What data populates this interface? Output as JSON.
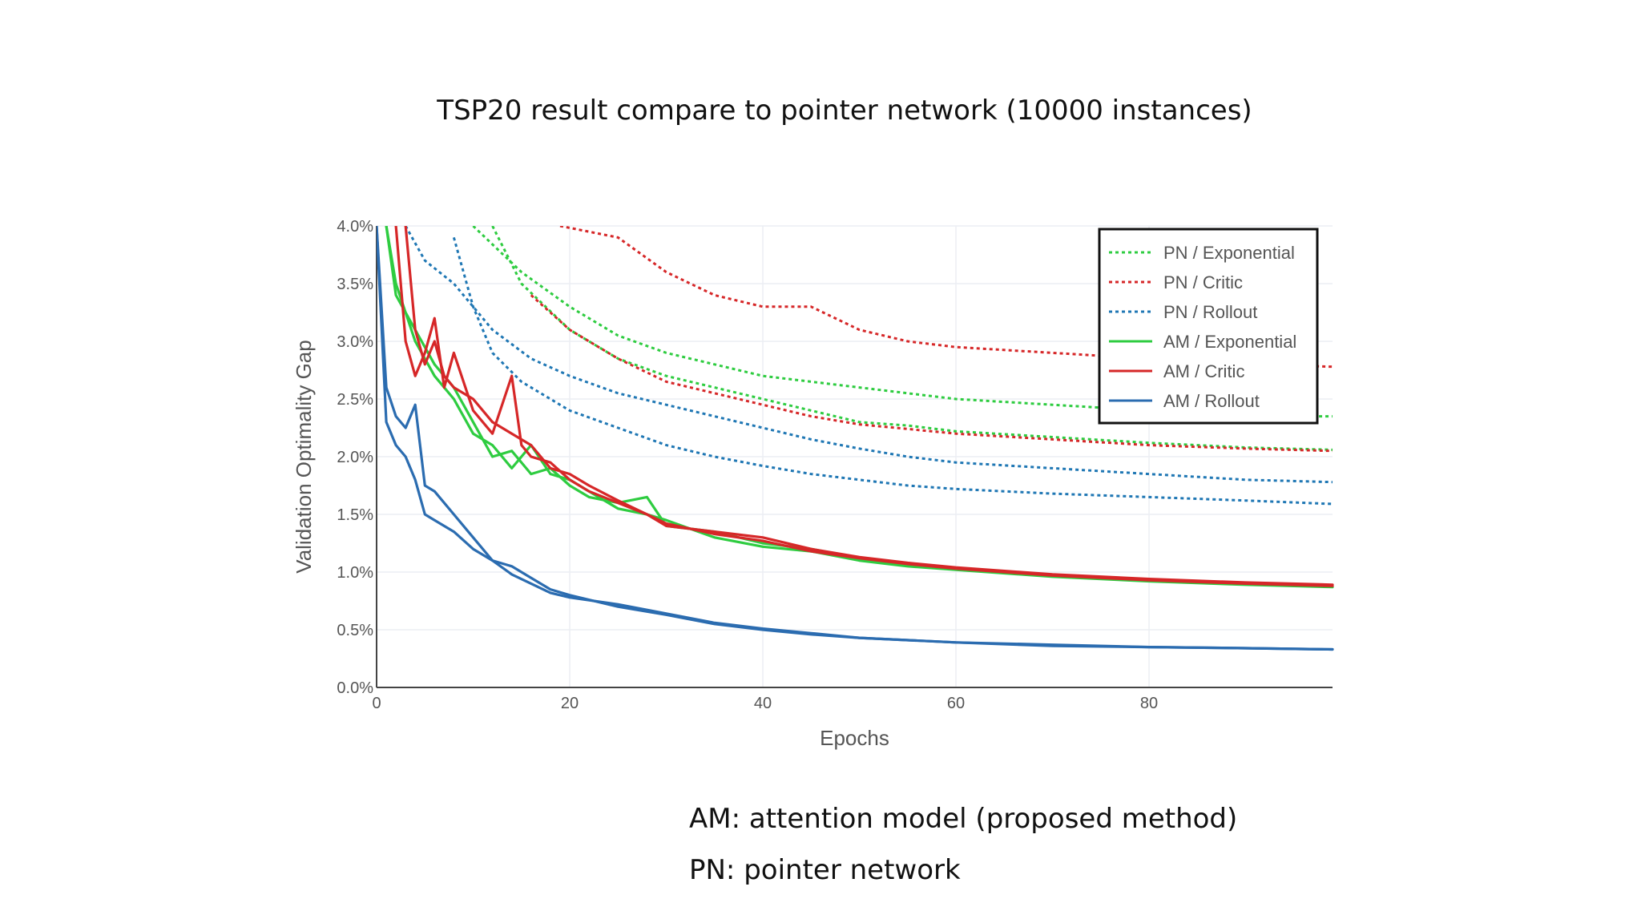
{
  "slide": {
    "title": "TSP20 result compare to pointer network (10000 instances)",
    "notes": [
      "AM: attention model (proposed method)",
      "PN: pointer network"
    ]
  },
  "chart_data": {
    "type": "line",
    "xlabel": "Epochs",
    "ylabel": "Validation Optimality Gap",
    "xlim": [
      0,
      99
    ],
    "ylim": [
      0,
      4.0
    ],
    "xticks": [
      0,
      20,
      40,
      60,
      80
    ],
    "xtick_labels": [
      "0",
      "20",
      "40",
      "60",
      "80"
    ],
    "yticks": [
      0,
      0.5,
      1.0,
      1.5,
      2.0,
      2.5,
      3.0,
      3.5,
      4.0
    ],
    "ytick_labels": [
      "0.0%",
      "0.5%",
      "1.0%",
      "1.5%",
      "2.0%",
      "2.5%",
      "3.0%",
      "3.5%",
      "4.0%"
    ],
    "grid": true,
    "legend_position": "top-right",
    "series": [
      {
        "name": "PN / Exponential",
        "color": "#2ecc40",
        "dash": "dotted",
        "runs": [
          [
            [
              10,
              4.0
            ],
            [
              15,
              3.6
            ],
            [
              20,
              3.3
            ],
            [
              25,
              3.05
            ],
            [
              30,
              2.9
            ],
            [
              35,
              2.8
            ],
            [
              40,
              2.7
            ],
            [
              45,
              2.65
            ],
            [
              50,
              2.6
            ],
            [
              55,
              2.55
            ],
            [
              60,
              2.5
            ],
            [
              70,
              2.45
            ],
            [
              80,
              2.4
            ],
            [
              90,
              2.35
            ],
            [
              99,
              2.35
            ]
          ],
          [
            [
              12,
              4.0
            ],
            [
              15,
              3.5
            ],
            [
              20,
              3.1
            ],
            [
              25,
              2.85
            ],
            [
              30,
              2.7
            ],
            [
              35,
              2.6
            ],
            [
              40,
              2.5
            ],
            [
              45,
              2.4
            ],
            [
              50,
              2.3
            ],
            [
              55,
              2.27
            ],
            [
              60,
              2.22
            ],
            [
              70,
              2.17
            ],
            [
              80,
              2.12
            ],
            [
              90,
              2.08
            ],
            [
              99,
              2.06
            ]
          ]
        ]
      },
      {
        "name": "PN / Critic",
        "color": "#d62728",
        "dash": "dotted",
        "runs": [
          [
            [
              19,
              4.0
            ],
            [
              25,
              3.9
            ],
            [
              30,
              3.6
            ],
            [
              35,
              3.4
            ],
            [
              40,
              3.3
            ],
            [
              45,
              3.3
            ],
            [
              50,
              3.1
            ],
            [
              55,
              3.0
            ],
            [
              60,
              2.95
            ],
            [
              70,
              2.9
            ],
            [
              80,
              2.85
            ],
            [
              90,
              2.8
            ],
            [
              99,
              2.78
            ]
          ],
          [
            [
              16,
              3.4
            ],
            [
              20,
              3.1
            ],
            [
              25,
              2.85
            ],
            [
              30,
              2.65
            ],
            [
              35,
              2.55
            ],
            [
              40,
              2.45
            ],
            [
              45,
              2.35
            ],
            [
              50,
              2.28
            ],
            [
              55,
              2.24
            ],
            [
              60,
              2.2
            ],
            [
              70,
              2.15
            ],
            [
              80,
              2.1
            ],
            [
              90,
              2.07
            ],
            [
              99,
              2.05
            ]
          ]
        ]
      },
      {
        "name": "PN / Rollout",
        "color": "#1f77b4",
        "dash": "dotted",
        "runs": [
          [
            [
              3,
              4.0
            ],
            [
              5,
              3.7
            ],
            [
              8,
              3.5
            ],
            [
              12,
              3.1
            ],
            [
              16,
              2.85
            ],
            [
              20,
              2.7
            ],
            [
              25,
              2.55
            ],
            [
              30,
              2.45
            ],
            [
              35,
              2.35
            ],
            [
              40,
              2.25
            ],
            [
              45,
              2.15
            ],
            [
              50,
              2.07
            ],
            [
              55,
              2.0
            ],
            [
              60,
              1.95
            ],
            [
              70,
              1.9
            ],
            [
              80,
              1.85
            ],
            [
              90,
              1.8
            ],
            [
              99,
              1.78
            ]
          ],
          [
            [
              8,
              3.9
            ],
            [
              10,
              3.3
            ],
            [
              12,
              2.9
            ],
            [
              15,
              2.65
            ],
            [
              20,
              2.4
            ],
            [
              25,
              2.25
            ],
            [
              30,
              2.1
            ],
            [
              35,
              2.0
            ],
            [
              40,
              1.92
            ],
            [
              45,
              1.85
            ],
            [
              50,
              1.8
            ],
            [
              55,
              1.75
            ],
            [
              60,
              1.72
            ],
            [
              70,
              1.68
            ],
            [
              80,
              1.65
            ],
            [
              90,
              1.62
            ],
            [
              99,
              1.59
            ]
          ]
        ]
      },
      {
        "name": "AM / Exponential",
        "color": "#2ecc40",
        "dash": "solid",
        "runs": [
          [
            [
              1,
              4.0
            ],
            [
              2,
              3.4
            ],
            [
              4,
              3.1
            ],
            [
              6,
              2.8
            ],
            [
              8,
              2.6
            ],
            [
              10,
              2.3
            ],
            [
              12,
              2.0
            ],
            [
              14,
              2.05
            ],
            [
              16,
              1.85
            ],
            [
              18,
              1.9
            ],
            [
              20,
              1.75
            ],
            [
              22,
              1.65
            ],
            [
              25,
              1.6
            ],
            [
              28,
              1.65
            ],
            [
              30,
              1.4
            ],
            [
              35,
              1.35
            ],
            [
              40,
              1.25
            ],
            [
              45,
              1.2
            ],
            [
              50,
              1.12
            ],
            [
              55,
              1.07
            ],
            [
              60,
              1.03
            ],
            [
              70,
              0.97
            ],
            [
              80,
              0.93
            ],
            [
              90,
              0.9
            ],
            [
              99,
              0.88
            ]
          ],
          [
            [
              1,
              4.0
            ],
            [
              2,
              3.5
            ],
            [
              4,
              3.0
            ],
            [
              6,
              2.7
            ],
            [
              8,
              2.5
            ],
            [
              10,
              2.2
            ],
            [
              12,
              2.1
            ],
            [
              14,
              1.9
            ],
            [
              16,
              2.1
            ],
            [
              18,
              1.85
            ],
            [
              20,
              1.8
            ],
            [
              22,
              1.7
            ],
            [
              25,
              1.55
            ],
            [
              28,
              1.5
            ],
            [
              30,
              1.45
            ],
            [
              35,
              1.3
            ],
            [
              40,
              1.22
            ],
            [
              45,
              1.18
            ],
            [
              50,
              1.1
            ],
            [
              55,
              1.05
            ],
            [
              60,
              1.02
            ],
            [
              70,
              0.96
            ],
            [
              80,
              0.92
            ],
            [
              90,
              0.89
            ],
            [
              99,
              0.87
            ]
          ]
        ]
      },
      {
        "name": "AM / Critic",
        "color": "#d62728",
        "dash": "solid",
        "runs": [
          [
            [
              2,
              4.0
            ],
            [
              3,
              3.0
            ],
            [
              4,
              2.7
            ],
            [
              5,
              2.9
            ],
            [
              6,
              3.2
            ],
            [
              7,
              2.6
            ],
            [
              8,
              2.9
            ],
            [
              10,
              2.4
            ],
            [
              12,
              2.2
            ],
            [
              14,
              2.7
            ],
            [
              15,
              2.1
            ],
            [
              16,
              2.0
            ],
            [
              18,
              1.95
            ],
            [
              20,
              1.8
            ],
            [
              22,
              1.7
            ],
            [
              25,
              1.6
            ],
            [
              28,
              1.5
            ],
            [
              30,
              1.4
            ],
            [
              35,
              1.35
            ],
            [
              40,
              1.3
            ],
            [
              45,
              1.2
            ],
            [
              50,
              1.13
            ],
            [
              55,
              1.08
            ],
            [
              60,
              1.04
            ],
            [
              70,
              0.98
            ],
            [
              80,
              0.94
            ],
            [
              90,
              0.91
            ],
            [
              99,
              0.89
            ]
          ],
          [
            [
              3,
              4.0
            ],
            [
              4,
              3.1
            ],
            [
              5,
              2.8
            ],
            [
              6,
              3.0
            ],
            [
              7,
              2.7
            ],
            [
              8,
              2.6
            ],
            [
              10,
              2.5
            ],
            [
              12,
              2.3
            ],
            [
              14,
              2.2
            ],
            [
              16,
              2.1
            ],
            [
              18,
              1.9
            ],
            [
              20,
              1.85
            ],
            [
              22,
              1.75
            ],
            [
              25,
              1.62
            ],
            [
              28,
              1.5
            ],
            [
              30,
              1.42
            ],
            [
              35,
              1.33
            ],
            [
              40,
              1.27
            ],
            [
              45,
              1.18
            ],
            [
              50,
              1.12
            ],
            [
              55,
              1.07
            ],
            [
              60,
              1.03
            ],
            [
              70,
              0.97
            ],
            [
              80,
              0.93
            ],
            [
              90,
              0.9
            ],
            [
              99,
              0.88
            ]
          ]
        ]
      },
      {
        "name": "AM / Rollout",
        "color": "#2b6cb0",
        "dash": "solid",
        "runs": [
          [
            [
              0,
              4.0
            ],
            [
              1,
              2.6
            ],
            [
              2,
              2.35
            ],
            [
              3,
              2.25
            ],
            [
              4,
              2.45
            ],
            [
              5,
              1.75
            ],
            [
              6,
              1.7
            ],
            [
              8,
              1.5
            ],
            [
              10,
              1.3
            ],
            [
              12,
              1.1
            ],
            [
              14,
              1.05
            ],
            [
              16,
              0.95
            ],
            [
              18,
              0.85
            ],
            [
              20,
              0.8
            ],
            [
              25,
              0.7
            ],
            [
              30,
              0.63
            ],
            [
              35,
              0.55
            ],
            [
              40,
              0.5
            ],
            [
              45,
              0.46
            ],
            [
              50,
              0.43
            ],
            [
              60,
              0.39
            ],
            [
              70,
              0.37
            ],
            [
              80,
              0.35
            ],
            [
              90,
              0.34
            ],
            [
              99,
              0.33
            ]
          ],
          [
            [
              0,
              4.0
            ],
            [
              1,
              2.3
            ],
            [
              2,
              2.1
            ],
            [
              3,
              2.0
            ],
            [
              4,
              1.8
            ],
            [
              5,
              1.5
            ],
            [
              6,
              1.45
            ],
            [
              8,
              1.35
            ],
            [
              10,
              1.2
            ],
            [
              12,
              1.1
            ],
            [
              14,
              0.98
            ],
            [
              16,
              0.9
            ],
            [
              18,
              0.82
            ],
            [
              20,
              0.78
            ],
            [
              25,
              0.72
            ],
            [
              30,
              0.64
            ],
            [
              35,
              0.56
            ],
            [
              40,
              0.51
            ],
            [
              45,
              0.47
            ],
            [
              50,
              0.43
            ],
            [
              60,
              0.39
            ],
            [
              70,
              0.36
            ],
            [
              80,
              0.35
            ],
            [
              90,
              0.34
            ],
            [
              99,
              0.33
            ]
          ]
        ]
      }
    ]
  }
}
